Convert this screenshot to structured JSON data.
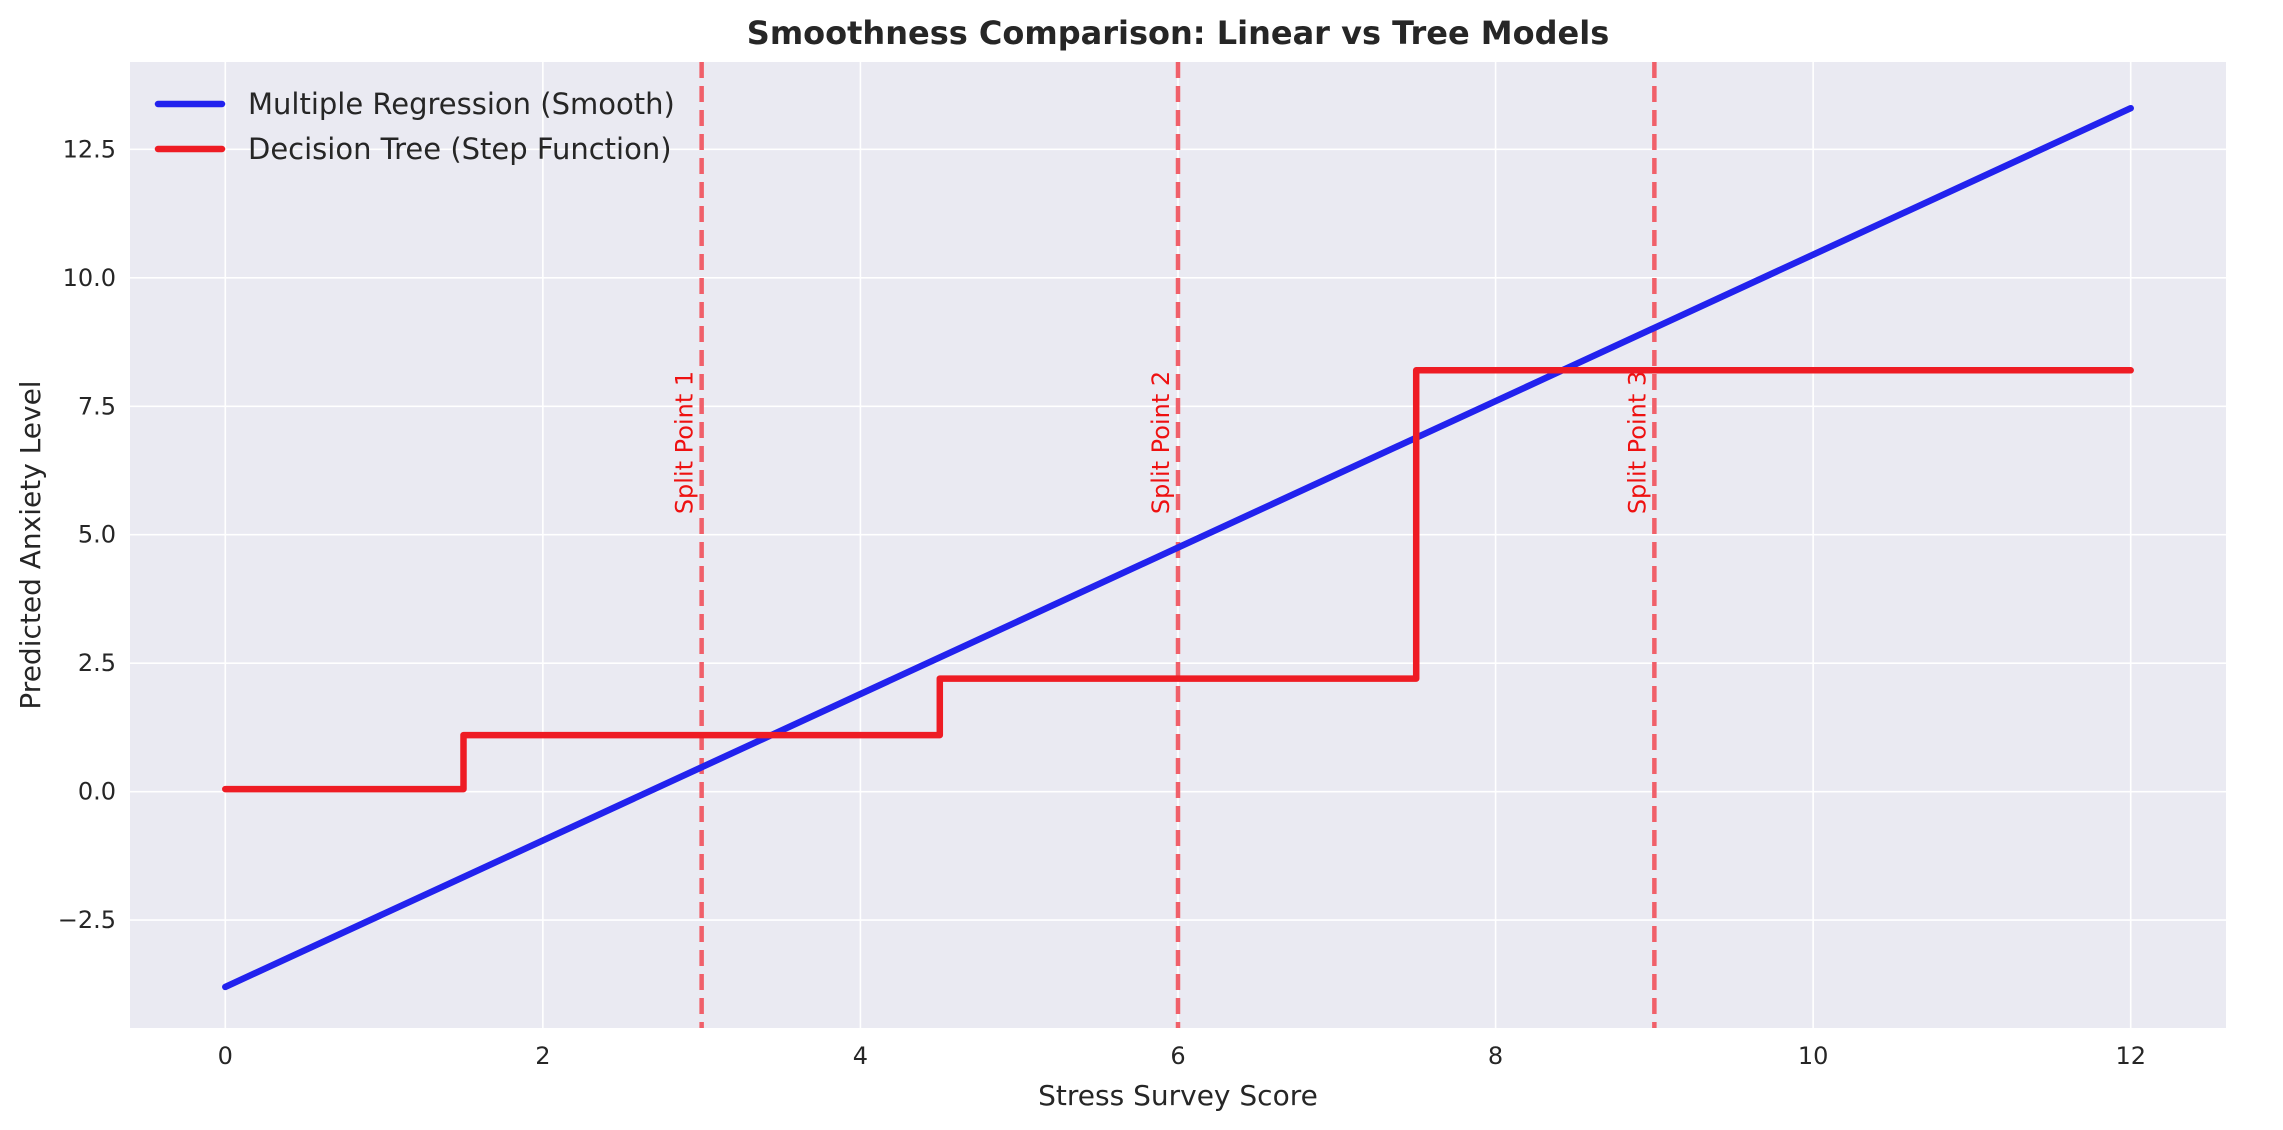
{
  "chart_data": {
    "type": "line",
    "title": "Smoothness Comparison: Linear vs Tree Models",
    "xlabel": "Stress Survey Score",
    "ylabel": "Predicted Anxiety Level",
    "xlim": [
      -0.6,
      12.6
    ],
    "ylim": [
      -4.6,
      14.2
    ],
    "xticks": [
      0,
      2,
      4,
      6,
      8,
      10,
      12
    ],
    "xtick_labels": [
      "0",
      "2",
      "4",
      "6",
      "8",
      "10",
      "12"
    ],
    "yticks": [
      -2.5,
      0.0,
      2.5,
      5.0,
      7.5,
      10.0,
      12.5
    ],
    "ytick_labels": [
      "−2.5",
      "0.0",
      "2.5",
      "5.0",
      "7.5",
      "10.0",
      "12.5"
    ],
    "grid": true,
    "legend": "top-left",
    "series": [
      {
        "name": "Multiple Regression (Smooth)",
        "color": "#2222ee",
        "x": [
          0,
          12
        ],
        "y": [
          -3.8,
          13.3
        ]
      },
      {
        "name": "Decision Tree (Step Function)",
        "color": "#ee1c24",
        "x": [
          0,
          1.5,
          1.5,
          4.5,
          4.5,
          7.5,
          7.5,
          12
        ],
        "y": [
          0.05,
          0.05,
          1.1,
          1.1,
          2.2,
          2.2,
          8.2,
          8.2
        ]
      }
    ],
    "annotations": [
      {
        "x": 3,
        "label": "Split Point 1",
        "color": "#f0606a"
      },
      {
        "x": 6,
        "label": "Split Point 2",
        "color": "#f0606a"
      },
      {
        "x": 9,
        "label": "Split Point 3",
        "color": "#f0606a"
      }
    ],
    "colors": {
      "plot_background": "#eaeaf2",
      "grid": "#ffffff",
      "annotation_text": "#ee1111"
    }
  }
}
